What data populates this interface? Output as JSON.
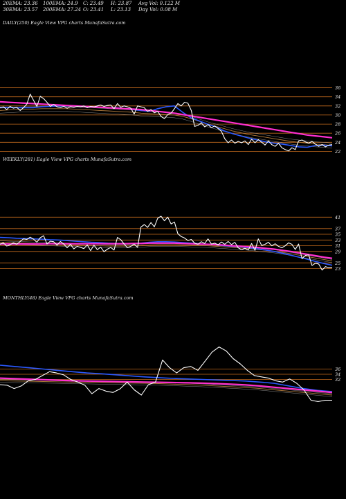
{
  "header": {
    "row1": [
      {
        "label": "20EMA:",
        "value": "23.36"
      },
      {
        "label": "100EMA:",
        "value": "24.9"
      },
      {
        "label": "C:",
        "value": "23.49"
      },
      {
        "label": "H:",
        "value": "23.87"
      },
      {
        "label": "Avg Vol:",
        "value": "0.122  M"
      }
    ],
    "row2": [
      {
        "label": "30EMA:",
        "value": "23.57"
      },
      {
        "label": "200EMA:",
        "value": "27.24"
      },
      {
        "label": "O:",
        "value": "23.41"
      },
      {
        "label": "L:",
        "value": "23.13"
      },
      {
        "label": "Day Vol:",
        "value": "0.08  M"
      }
    ]
  },
  "colors": {
    "background": "#000000",
    "price": "#ffffff",
    "ema_short": "#2b59ff",
    "ema_long": "#ff2fd0",
    "ema_mid": "#b07a3a",
    "ema_minor": "#c8c8c8",
    "level_line": "#c46a1c"
  },
  "chart_data": [
    {
      "type": "line",
      "title": "DAILY(250) Eagle  View  VPG charts MunafaSutra.com",
      "yticks": [
        "36",
        "34",
        "32",
        "30",
        "28",
        "26",
        "24",
        "22"
      ],
      "ylim": [
        21,
        37
      ],
      "grid": "horizontal levels",
      "series": [
        {
          "role": "price",
          "values": [
            31.6,
            31.8,
            31.2,
            31.9,
            31.5,
            31.7,
            31.0,
            31.6,
            32.4,
            34.6,
            33.2,
            31.9,
            34.1,
            33.6,
            32.8,
            31.9,
            32.3,
            31.8,
            31.6,
            31.9,
            31.5,
            31.8,
            31.7,
            31.9,
            31.8,
            32.0,
            31.6,
            31.9,
            31.8,
            32.0,
            32.2,
            31.9,
            32.1,
            32.2,
            31.4,
            32.5,
            31.7,
            32.0,
            31.8,
            31.5,
            30.2,
            32.0,
            31.8,
            31.6,
            30.8,
            31.2,
            30.5,
            30.8,
            29.7,
            29.2,
            30.1,
            30.4,
            31.4,
            32.5,
            32.0,
            32.8,
            32.6,
            31.0,
            27.5,
            27.7,
            28.3,
            27.4,
            27.9,
            27.2,
            27.6,
            27.0,
            26.4,
            24.8,
            23.9,
            24.5,
            23.8,
            24.2,
            23.9,
            24.3,
            23.5,
            24.7,
            23.9,
            24.6,
            24.0,
            23.4,
            24.3,
            23.5,
            23.1,
            23.8,
            22.8,
            22.4,
            22.1,
            22.8,
            22.4,
            24.3,
            24.5,
            24.1,
            23.8,
            24.2,
            23.6,
            23.1,
            23.5,
            23.0,
            23.4,
            23.49
          ]
        },
        {
          "role": "ema-short",
          "values": [
            31.7,
            31.7,
            31.6,
            31.6,
            31.6,
            31.8,
            31.9,
            32.0,
            32.0,
            32.0,
            31.9,
            31.8,
            31.7,
            31.6,
            31.6,
            31.4,
            31.2,
            31.0,
            30.8,
            31.4,
            31.8,
            32.0,
            30.6,
            29.4,
            28.7,
            28.0,
            27.4,
            26.5,
            25.9,
            25.4,
            24.9,
            24.5,
            24.1,
            23.8,
            23.6,
            23.3,
            23.0,
            22.9,
            23.3,
            23.4,
            23.2
          ]
        },
        {
          "role": "ema-long",
          "values": [
            32.9,
            32.8,
            32.7,
            32.6,
            32.5,
            32.4,
            32.3,
            32.2,
            32.1,
            32.0,
            31.9,
            31.8,
            31.7,
            31.6,
            31.5,
            31.4,
            31.3,
            31.2,
            31.0,
            30.8,
            30.6,
            30.4,
            30.1,
            29.8,
            29.5,
            29.2,
            28.9,
            28.6,
            28.3,
            28.0,
            27.7,
            27.4,
            27.1,
            26.8,
            26.5,
            26.2,
            25.9,
            25.6,
            25.4,
            25.2,
            25.0
          ]
        },
        {
          "role": "ema-mid",
          "values": [
            31.0,
            31.1,
            31.2,
            31.3,
            31.3,
            31.4,
            31.4,
            31.4,
            31.4,
            31.3,
            31.2,
            31.1,
            31.0,
            30.9,
            30.8,
            30.7,
            30.6,
            30.4,
            30.3,
            30.2,
            30.1,
            30.0,
            29.7,
            29.2,
            28.6,
            28.0,
            27.5,
            27.0,
            26.5,
            26.1,
            25.7,
            25.4,
            25.1,
            24.8,
            24.5,
            24.2,
            24.0,
            23.8,
            23.6,
            23.5,
            23.3
          ]
        }
      ]
    },
    {
      "type": "line",
      "title": "WEEKLY(281) Eagle  View  VPG charts MunafaSutra.com",
      "yticks": [
        "41",
        "37",
        "35",
        "33",
        "31",
        "29",
        "25",
        "23"
      ],
      "ylim": [
        20,
        43
      ],
      "grid": "horizontal levels",
      "series": [
        {
          "role": "price",
          "values": [
            31.5,
            32.0,
            30.9,
            31.3,
            32.0,
            31.5,
            32.5,
            33.4,
            33.2,
            34.0,
            33.3,
            32.2,
            33.8,
            34.5,
            31.6,
            32.6,
            32.4,
            31.2,
            32.5,
            31.6,
            30.3,
            31.5,
            29.9,
            30.8,
            30.4,
            30.0,
            31.3,
            29.3,
            31.2,
            29.6,
            30.5,
            28.9,
            29.8,
            30.4,
            29.5,
            33.9,
            33.1,
            31.6,
            30.3,
            30.8,
            31.6,
            30.4,
            37.5,
            38.4,
            37.4,
            39.1,
            37.6,
            40.6,
            41.3,
            39.7,
            41.0,
            38.6,
            39.3,
            35.2,
            34.2,
            33.7,
            32.8,
            33.2,
            31.9,
            31.5,
            32.4,
            31.8,
            33.4,
            31.6,
            31.9,
            31.3,
            32.3,
            31.5,
            32.5,
            31.4,
            32.2,
            30.3,
            29.6,
            30.1,
            29.5,
            31.8,
            29.4,
            33.4,
            31.1,
            31.5,
            32.2,
            31.0,
            31.7,
            30.8,
            30.3,
            31.0,
            32.0,
            31.5,
            29.7,
            31.6,
            26.5,
            27.6,
            27.8,
            24.1,
            24.9,
            24.6,
            22.5,
            23.7,
            23.3,
            23.49
          ]
        },
        {
          "role": "ema-short",
          "values": [
            33.9,
            33.8,
            33.6,
            33.5,
            33.4,
            33.3,
            33.1,
            33.0,
            32.8,
            32.6,
            32.4,
            32.2,
            32.1,
            31.9,
            31.8,
            31.8,
            31.8,
            31.9,
            32.2,
            32.4,
            32.4,
            32.3,
            32.1,
            31.9,
            31.7,
            31.5,
            31.3,
            31.0,
            30.8,
            30.6,
            30.3,
            29.9,
            29.5,
            29.0,
            28.4,
            27.7,
            27.0,
            26.3,
            25.5,
            24.8,
            24.2
          ]
        },
        {
          "role": "ema-long",
          "values": [
            31.6,
            31.6,
            31.6,
            31.6,
            31.6,
            31.6,
            31.7,
            31.7,
            31.7,
            31.7,
            31.7,
            31.7,
            31.7,
            31.7,
            31.7,
            31.7,
            31.8,
            31.8,
            31.9,
            31.9,
            31.9,
            31.9,
            31.8,
            31.7,
            31.6,
            31.5,
            31.4,
            31.2,
            31.0,
            30.8,
            30.6,
            30.4,
            30.1,
            29.8,
            29.4,
            29.0,
            28.5,
            28.0,
            27.5,
            27.0,
            26.6
          ]
        },
        {
          "role": "ema-mid",
          "values": [
            32.2,
            32.1,
            32.0,
            31.9,
            31.8,
            31.7,
            31.6,
            31.5,
            31.4,
            31.3,
            31.2,
            31.1,
            31.0,
            30.9,
            30.9,
            30.9,
            31.0,
            31.1,
            31.3,
            31.4,
            31.4,
            31.4,
            31.3,
            31.2,
            31.1,
            31.0,
            30.8,
            30.6,
            30.4,
            30.2,
            30.0,
            29.7,
            29.4,
            29.1,
            28.7,
            28.2,
            27.7,
            27.2,
            26.7,
            26.2,
            25.7
          ]
        }
      ]
    },
    {
      "type": "line",
      "title": "MONTHLY(48) Eagle  View  VPG charts MunafaSutra.com",
      "yticks": [
        "36",
        "34",
        "32"
      ],
      "ylim": [
        18,
        50
      ],
      "grid": "horizontal levels",
      "series": [
        {
          "role": "price",
          "values": [
            30.0,
            29.8,
            28.5,
            29.5,
            31.5,
            32.0,
            33.5,
            35.0,
            34.5,
            33.8,
            32.0,
            31.0,
            29.8,
            26.5,
            28.5,
            27.5,
            27.0,
            28.4,
            31.0,
            28.0,
            26.0,
            30.0,
            31.0,
            39.5,
            36.5,
            34.5,
            36.5,
            37.0,
            35.5,
            39.0,
            42.5,
            44.5,
            43.0,
            40.0,
            38.0,
            35.5,
            33.5,
            33.0,
            32.5,
            31.5,
            31.0,
            32.2,
            30.5,
            28.0,
            24.0,
            23.5,
            24.0,
            24.0
          ]
        },
        {
          "role": "ema-short",
          "values": [
            37.5,
            37.0,
            36.5,
            36.0,
            35.5,
            35.0,
            34.5,
            34.2,
            33.8,
            33.4,
            33.0,
            32.7,
            32.4,
            32.2,
            32.0,
            31.8,
            31.6,
            31.4,
            31.0,
            30.5,
            29.5,
            28.5,
            27.8,
            27.3
          ]
        },
        {
          "role": "ema-long",
          "values": [
            32.5,
            32.3,
            32.1,
            31.9,
            31.7,
            31.5,
            31.4,
            31.3,
            31.2,
            31.1,
            31.0,
            30.9,
            30.8,
            30.7,
            30.6,
            30.4,
            30.2,
            29.9,
            29.5,
            29.0,
            28.5,
            28.0,
            27.5,
            27.0
          ]
        },
        {
          "role": "ema-mid",
          "values": [
            31.5,
            31.4,
            31.3,
            31.2,
            31.1,
            31.0,
            30.9,
            30.8,
            30.7,
            30.6,
            30.5,
            30.4,
            30.2,
            30.0,
            29.8,
            29.5,
            29.2,
            28.9,
            28.5,
            28.0,
            27.5,
            27.0,
            26.5,
            26.0
          ]
        }
      ]
    }
  ]
}
